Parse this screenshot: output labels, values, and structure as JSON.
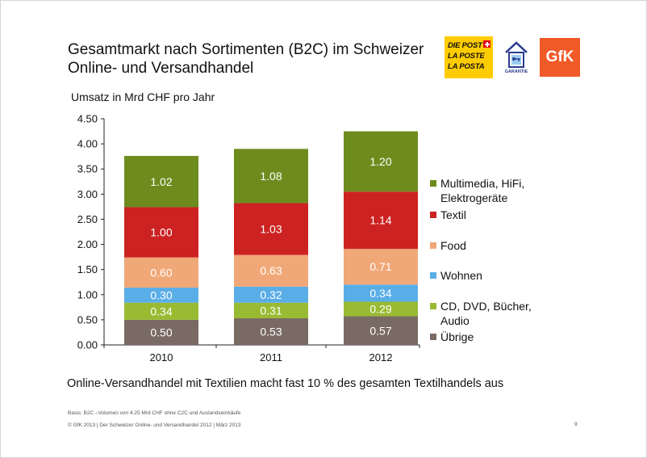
{
  "title": "Gesamtmarkt nach Sortimenten (B2C) im Schweizer Online- und Versandhandel",
  "logos": {
    "post_lines": [
      "DIE POST",
      "LA POSTE",
      "LA POSTA"
    ],
    "garantie_label": "GARANTIE",
    "gfk_label": "GfK"
  },
  "chart_data": {
    "type": "bar",
    "stacked": true,
    "ylabel": "Umsatz in Mrd CHF pro Jahr",
    "ylim": [
      0,
      4.5
    ],
    "yticks": [
      "0.00",
      "0.50",
      "1.00",
      "1.50",
      "2.00",
      "2.50",
      "3.00",
      "3.50",
      "4.00",
      "4.50"
    ],
    "ytick_values": [
      0,
      0.5,
      1.0,
      1.5,
      2.0,
      2.5,
      3.0,
      3.5,
      4.0,
      4.5
    ],
    "categories": [
      "2010",
      "2011",
      "2012"
    ],
    "grid": false,
    "legend_position": "right",
    "series": [
      {
        "name": "Übrige",
        "color": "#7a6a64",
        "values": [
          0.5,
          0.53,
          0.57
        ],
        "labels": [
          "0.50",
          "0.53",
          "0.57"
        ]
      },
      {
        "name": "CD, DVD, Bücher, Audio",
        "color": "#99bb33",
        "values": [
          0.34,
          0.31,
          0.29
        ],
        "labels": [
          "0.34",
          "0.31",
          "0.29"
        ]
      },
      {
        "name": "Wohnen",
        "color": "#5aaee8",
        "values": [
          0.3,
          0.32,
          0.34
        ],
        "labels": [
          "0.30",
          "0.32",
          "0.34"
        ]
      },
      {
        "name": "Food",
        "color": "#f0a878",
        "values": [
          0.6,
          0.63,
          0.71
        ],
        "labels": [
          "0.60",
          "0.63",
          "0.71"
        ]
      },
      {
        "name": "Textil",
        "color": "#cc2222",
        "values": [
          1.0,
          1.03,
          1.14
        ],
        "labels": [
          "1.00",
          "1.03",
          "1.14"
        ]
      },
      {
        "name": "Multimedia, HiFi, Elektrogeräte",
        "color": "#6e8c1e",
        "values": [
          1.02,
          1.08,
          1.2
        ],
        "labels": [
          "1.02",
          "1.08",
          "1.20"
        ]
      }
    ],
    "legend": [
      {
        "lines": [
          "Multimedia, HiFi,",
          "Elektrogeräte"
        ],
        "color": "#6e8c1e"
      },
      {
        "lines": [
          "Textil"
        ],
        "color": "#cc2222"
      },
      {
        "lines": [
          "Food"
        ],
        "color": "#f0a878"
      },
      {
        "lines": [
          "Wohnen"
        ],
        "color": "#5aaee8"
      },
      {
        "lines": [
          "CD, DVD, Bücher,",
          "Audio"
        ],
        "color": "#99bb33"
      },
      {
        "lines": [
          "Übrige"
        ],
        "color": "#7a6a64"
      }
    ]
  },
  "note": "Online-Versandhandel mit Textilien macht fast 10 % des gesamten Textilhandels aus",
  "footer": {
    "basis": "Basis: B2C –Volumen von 4.25 Mrd CHF ohne C2C und Auslandseinkäufe",
    "copyright": "© GfK 2013 | Der Schweizer Online- und Versandhandel 2012 | März 2013",
    "page": "9"
  }
}
